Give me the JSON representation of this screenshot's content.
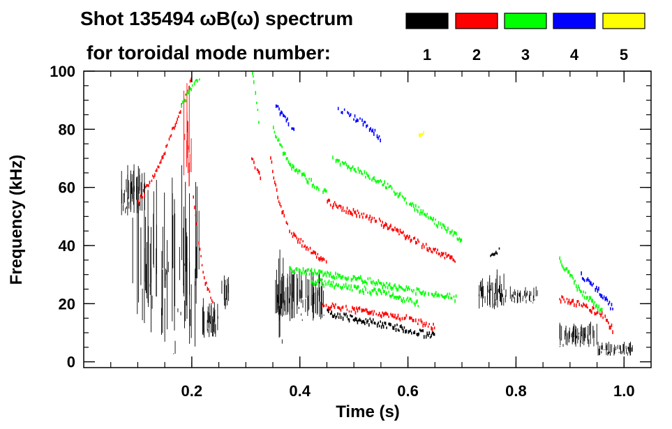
{
  "chart_data": {
    "type": "scatter",
    "title_line1": "Shot 135494 ωB(ω) spectrum",
    "title_line2": "for toroidal mode number:",
    "xlabel": "Time (s)",
    "ylabel": "Frequency (kHz)",
    "xlim": [
      0.0,
      1.05
    ],
    "ylim": [
      -2,
      100
    ],
    "x_ticks": [
      0.2,
      0.4,
      0.6,
      0.8,
      1.0
    ],
    "x_tick_labels": [
      "0.2",
      "0.4",
      "0.6",
      "0.8",
      "1.0"
    ],
    "y_ticks": [
      0,
      20,
      40,
      60,
      80,
      100
    ],
    "y_tick_labels": [
      "0",
      "20",
      "40",
      "60",
      "80",
      "100"
    ],
    "x_minor_step": 0.05,
    "y_minor_step": 5,
    "legend": [
      {
        "label": "1",
        "color": "#000000"
      },
      {
        "label": "2",
        "color": "#ff0000"
      },
      {
        "label": "3",
        "color": "#00ff00"
      },
      {
        "label": "4",
        "color": "#0000ff"
      },
      {
        "label": "5",
        "color": "#ffff00"
      }
    ],
    "series": [
      {
        "name": "n=1",
        "color": "#000000",
        "clusters": [
          {
            "t0": 0.07,
            "t1": 0.115,
            "f0": 50,
            "f1": 68,
            "density": 0.9
          },
          {
            "t0": 0.09,
            "t1": 0.22,
            "f0": 10,
            "f1": 68,
            "density": 0.35
          },
          {
            "t0": 0.115,
            "t1": 0.21,
            "f0": 2,
            "f1": 60,
            "density": 0.3
          },
          {
            "t0": 0.22,
            "t1": 0.255,
            "f0": 8,
            "f1": 22,
            "density": 0.75
          },
          {
            "t0": 0.255,
            "t1": 0.27,
            "f0": 18,
            "f1": 30,
            "density": 0.7
          },
          {
            "t0": 0.355,
            "t1": 0.445,
            "f0": 14,
            "f1": 32,
            "density": 0.95
          },
          {
            "t0": 0.355,
            "t1": 0.37,
            "f0": 2,
            "f1": 40,
            "density": 0.5
          },
          {
            "t0": 0.73,
            "t1": 0.78,
            "f0": 18,
            "f1": 32,
            "density": 0.9
          },
          {
            "t0": 0.78,
            "t1": 0.84,
            "f0": 20,
            "f1": 26,
            "density": 0.7
          },
          {
            "t0": 0.88,
            "t1": 0.95,
            "f0": 5,
            "f1": 14,
            "density": 0.9
          },
          {
            "t0": 0.95,
            "t1": 1.02,
            "f0": 2,
            "f1": 7,
            "density": 0.85
          }
        ],
        "tracks": [
          {
            "t": [
              0.45,
              0.55,
              0.65
            ],
            "f": [
              17,
              13,
              9
            ]
          },
          {
            "t": [
              0.75,
              0.77
            ],
            "f": [
              36,
              39
            ]
          }
        ]
      },
      {
        "name": "n=2",
        "color": "#ff0000",
        "clusters": [
          {
            "t0": 0.185,
            "t1": 0.2,
            "f0": 60,
            "f1": 98,
            "density": 0.9
          }
        ],
        "tracks": [
          {
            "t": [
              0.1,
              0.14,
              0.18,
              0.2
            ],
            "f": [
              55,
              68,
              88,
              98
            ]
          },
          {
            "t": [
              0.2,
              0.21,
              0.22,
              0.24
            ],
            "f": [
              60,
              45,
              30,
              20
            ]
          },
          {
            "t": [
              0.31,
              0.32,
              0.33
            ],
            "f": [
              70,
              66,
              62
            ]
          },
          {
            "t": [
              0.345,
              0.36,
              0.38,
              0.42,
              0.45
            ],
            "f": [
              70,
              55,
              45,
              38,
              35
            ]
          },
          {
            "t": [
              0.45,
              0.55,
              0.65,
              0.69
            ],
            "f": [
              55,
              48,
              38,
              35
            ]
          },
          {
            "t": [
              0.44,
              0.5,
              0.6,
              0.65
            ],
            "f": [
              20,
              18,
              15,
              12
            ]
          },
          {
            "t": [
              0.88,
              0.92,
              0.96,
              0.98
            ],
            "f": [
              22,
              20,
              16,
              11
            ]
          }
        ]
      },
      {
        "name": "n=3",
        "color": "#00ff00",
        "tracks": [
          {
            "t": [
              0.18,
              0.2,
              0.215
            ],
            "f": [
              88,
              95,
              98
            ]
          },
          {
            "t": [
              0.31,
              0.315,
              0.325
            ],
            "f": [
              100,
              95,
              80
            ]
          },
          {
            "t": [
              0.35,
              0.38,
              0.42,
              0.45
            ],
            "f": [
              80,
              68,
              62,
              58
            ]
          },
          {
            "t": [
              0.46,
              0.55,
              0.65,
              0.7
            ],
            "f": [
              70,
              62,
              48,
              42
            ]
          },
          {
            "t": [
              0.38,
              0.5,
              0.6,
              0.69
            ],
            "f": [
              32,
              29,
              25,
              22
            ]
          },
          {
            "t": [
              0.42,
              0.55,
              0.62
            ],
            "f": [
              28,
              24,
              20
            ]
          },
          {
            "t": [
              0.88,
              0.92,
              0.96
            ],
            "f": [
              35,
              24,
              18
            ]
          }
        ]
      },
      {
        "name": "n=4",
        "color": "#0000ff",
        "tracks": [
          {
            "t": [
              0.355,
              0.37,
              0.39
            ],
            "f": [
              88,
              84,
              80
            ]
          },
          {
            "t": [
              0.47,
              0.52,
              0.55
            ],
            "f": [
              87,
              82,
              77
            ]
          },
          {
            "t": [
              0.92,
              0.95,
              0.98
            ],
            "f": [
              30,
              25,
              18
            ]
          }
        ]
      },
      {
        "name": "n=5",
        "color": "#ffff00",
        "tracks": [
          {
            "t": [
              0.62,
              0.63
            ],
            "f": [
              78,
              80
            ]
          }
        ]
      }
    ]
  }
}
